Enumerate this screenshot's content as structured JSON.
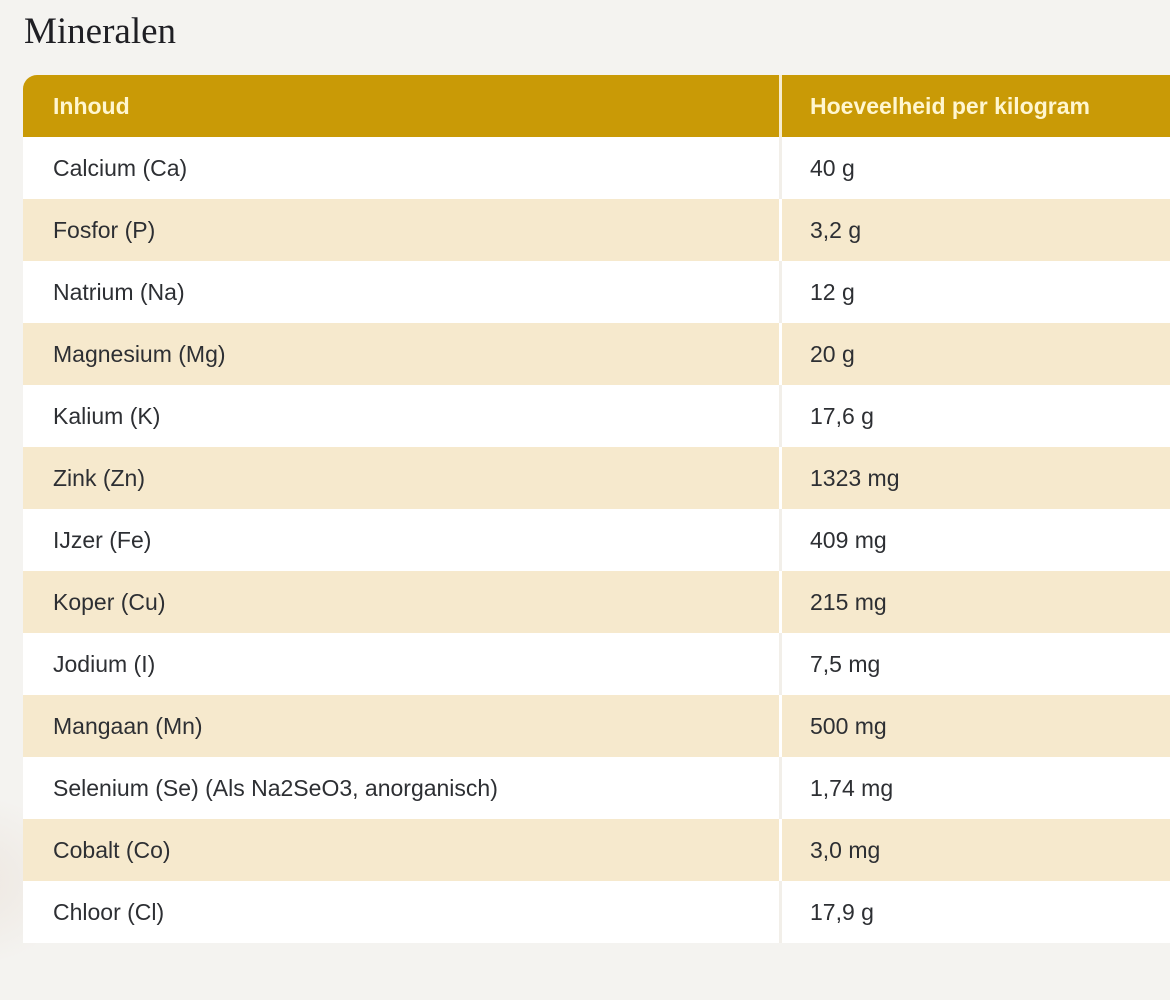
{
  "title": "Mineralen",
  "table": {
    "headers": [
      "Inhoud",
      "Hoeveelheid per kilogram"
    ],
    "rows": [
      [
        "Calcium (Ca)",
        "40 g"
      ],
      [
        "Fosfor (P)",
        "3,2 g"
      ],
      [
        "Natrium (Na)",
        "12 g"
      ],
      [
        "Magnesium (Mg)",
        "20 g"
      ],
      [
        "Kalium (K)",
        "17,6 g"
      ],
      [
        "Zink (Zn)",
        "1323 mg"
      ],
      [
        "IJzer (Fe)",
        "409 mg"
      ],
      [
        "Koper (Cu)",
        "215 mg"
      ],
      [
        "Jodium (I)",
        "7,5 mg"
      ],
      [
        "Mangaan (Mn)",
        "500 mg"
      ],
      [
        "Selenium (Se) (Als Na2SeO3, anorganisch)",
        "1,74 mg"
      ],
      [
        "Cobalt (Co)",
        "3,0 mg"
      ],
      [
        "Chloor (Cl)",
        "17,9 g"
      ]
    ]
  },
  "colors": {
    "header_bg": "#c99a06",
    "header_text": "#fff6cf",
    "alt_row": "#f6e9cd"
  }
}
